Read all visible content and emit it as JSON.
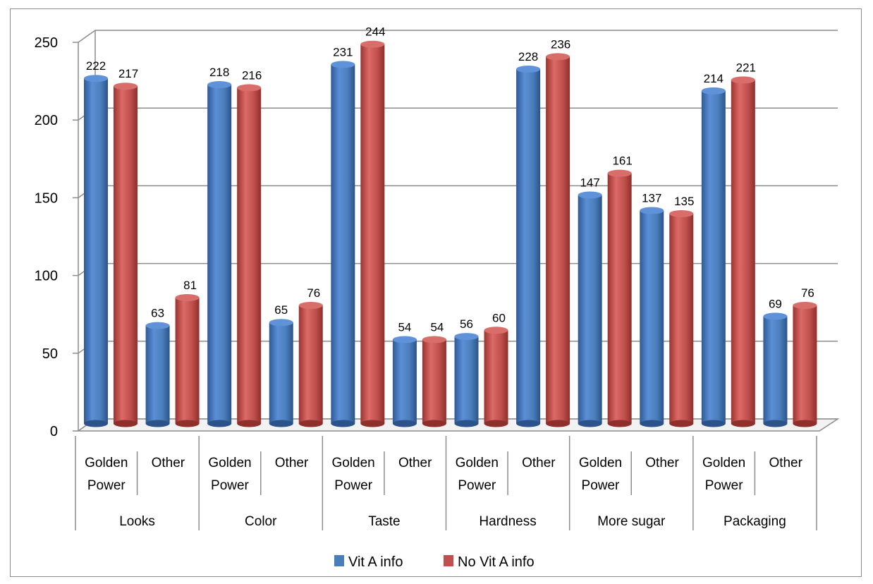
{
  "chart_data": {
    "type": "bar",
    "title": "",
    "xlabel": "",
    "ylabel": "",
    "ylim": [
      0,
      250
    ],
    "yticks": [
      "0",
      "50",
      "100",
      "150",
      "200",
      "250"
    ],
    "grid": true,
    "legend_position": "bottom",
    "groups": [
      {
        "label": "Looks",
        "subcategories": [
          [
            "Golden",
            "Power"
          ],
          [
            "Other"
          ]
        ]
      },
      {
        "label": "Color",
        "subcategories": [
          [
            "Golden",
            "Power"
          ],
          [
            "Other"
          ]
        ]
      },
      {
        "label": "Taste",
        "subcategories": [
          [
            "Golden",
            "Power"
          ],
          [
            "Other"
          ]
        ]
      },
      {
        "label": "Hardness",
        "subcategories": [
          [
            "Golden",
            "Power"
          ],
          [
            "Other"
          ]
        ]
      },
      {
        "label": "More sugar",
        "subcategories": [
          [
            "Golden",
            "Power"
          ],
          [
            "Other"
          ]
        ]
      },
      {
        "label": "Packaging",
        "subcategories": [
          [
            "Golden",
            "Power"
          ],
          [
            "Other"
          ]
        ]
      }
    ],
    "series": [
      {
        "name": "Vit A info",
        "color": "#4a7ebb",
        "values": [
          222,
          63,
          218,
          65,
          231,
          54,
          56,
          228,
          147,
          137,
          214,
          69
        ]
      },
      {
        "name": "No Vit A info",
        "color": "#c0504d",
        "values": [
          217,
          81,
          216,
          76,
          244,
          54,
          60,
          236,
          161,
          135,
          221,
          76
        ]
      }
    ]
  }
}
